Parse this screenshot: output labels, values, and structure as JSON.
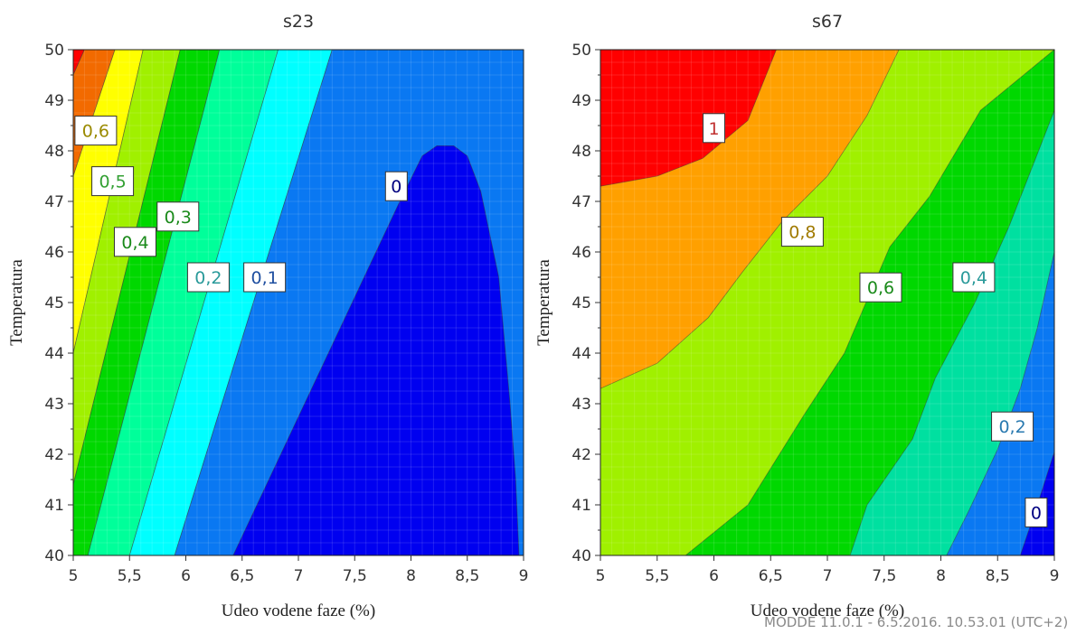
{
  "chart_data": [
    {
      "type": "contour",
      "title": "s23",
      "xlabel": "Udeo vodene faze (%)",
      "ylabel": "Temperatura",
      "xlim": [
        5,
        9
      ],
      "ylim": [
        40,
        50
      ],
      "xticks": [
        "5",
        "5,5",
        "6",
        "6,5",
        "7",
        "7,5",
        "8",
        "8,5",
        "9"
      ],
      "yticks": [
        "40",
        "41",
        "42",
        "43",
        "44",
        "45",
        "46",
        "47",
        "48",
        "49",
        "50"
      ],
      "levels": [
        {
          "value": "0,6",
          "color": "#f26a00",
          "text_color": "#9a8a00",
          "x": 5.2,
          "y": 48.4
        },
        {
          "value": "0,5",
          "color": "#ffff00",
          "text_color": "#33a033",
          "x": 5.35,
          "y": 47.4
        },
        {
          "value": "0,4",
          "color": "#a0f000",
          "text_color": "#1a8a1a",
          "x": 5.55,
          "y": 46.2
        },
        {
          "value": "0,3",
          "color": "#00d800",
          "text_color": "#1a8a1a",
          "x": 5.93,
          "y": 46.7
        },
        {
          "value": "0,2",
          "color": "#00ff9a",
          "text_color": "#2a9a9a",
          "x": 6.2,
          "y": 45.5
        },
        {
          "value": "0,1",
          "color": "#00ffff",
          "text_color": "#1f4fa0",
          "x": 6.7,
          "y": 45.5
        },
        {
          "value": "0",
          "color": "#0a78f2",
          "text_color": "#000080",
          "x": 7.87,
          "y": 47.3
        }
      ],
      "regions": [
        {
          "color": "#ff0000",
          "points": [
            [
              5,
              50
            ],
            [
              5.1,
              50
            ],
            [
              5,
              49.5
            ]
          ]
        },
        {
          "color": "#f26a00",
          "points": [
            [
              5,
              49.5
            ],
            [
              5.1,
              50
            ],
            [
              5.37,
              50
            ],
            [
              5,
              47.5
            ]
          ]
        },
        {
          "color": "#ffff00",
          "points": [
            [
              5,
              47.5
            ],
            [
              5.37,
              50
            ],
            [
              5.62,
              50
            ],
            [
              5,
              44
            ]
          ]
        },
        {
          "color": "#a0f000",
          "points": [
            [
              5,
              44
            ],
            [
              5.62,
              50
            ],
            [
              5.95,
              50
            ],
            [
              5,
              41.4
            ]
          ]
        },
        {
          "color": "#00d800",
          "points": [
            [
              5,
              41.4
            ],
            [
              5.95,
              50
            ],
            [
              6.3,
              50
            ],
            [
              5.13,
              40
            ],
            [
              5,
              40
            ]
          ]
        },
        {
          "color": "#00ff9a",
          "points": [
            [
              5.13,
              40
            ],
            [
              6.3,
              50
            ],
            [
              6.82,
              50
            ],
            [
              5.5,
              40
            ]
          ]
        },
        {
          "color": "#00ffff",
          "points": [
            [
              5.5,
              40
            ],
            [
              6.82,
              50
            ],
            [
              7.3,
              50
            ],
            [
              5.9,
              40
            ]
          ]
        },
        {
          "color": "#0a78f2",
          "points": [
            [
              5.9,
              40
            ],
            [
              7.3,
              50
            ],
            [
              9,
              50
            ],
            [
              9,
              40
            ]
          ]
        },
        {
          "color": "#0000f0",
          "points": [
            [
              6.42,
              40
            ],
            [
              7.9,
              47.0
            ],
            [
              8.1,
              47.9
            ],
            [
              8.23,
              48.1
            ],
            [
              8.38,
              48.1
            ],
            [
              8.5,
              47.9
            ],
            [
              8.62,
              47.2
            ],
            [
              8.78,
              45.5
            ],
            [
              8.88,
              43.0
            ],
            [
              8.93,
              41.5
            ],
            [
              8.96,
              40
            ]
          ]
        }
      ]
    },
    {
      "type": "contour",
      "title": "s67",
      "xlabel": "Udeo vodene faze (%)",
      "ylabel": "Temperatura",
      "xlim": [
        5,
        9
      ],
      "ylim": [
        40,
        50
      ],
      "xticks": [
        "5",
        "5,5",
        "6",
        "6,5",
        "7",
        "7,5",
        "8",
        "8,5",
        "9"
      ],
      "yticks": [
        "40",
        "41",
        "42",
        "43",
        "44",
        "45",
        "46",
        "47",
        "48",
        "49",
        "50"
      ],
      "levels": [
        {
          "value": "1",
          "color": "#ff0000",
          "text_color": "#c03030",
          "x": 6.0,
          "y": 48.45
        },
        {
          "value": "0,8",
          "color": "#ffa000",
          "text_color": "#a07a00",
          "x": 6.78,
          "y": 46.4
        },
        {
          "value": "0,6",
          "color": "#a0f000",
          "text_color": "#1a8a1a",
          "x": 7.47,
          "y": 45.3
        },
        {
          "value": "0,4",
          "color": "#00d800",
          "text_color": "#2a9a9a",
          "x": 8.29,
          "y": 45.5
        },
        {
          "value": "0,2",
          "color": "#00e0a0",
          "text_color": "#2a7ab0",
          "x": 8.63,
          "y": 42.55
        },
        {
          "value": "0",
          "color": "#0a78f2",
          "text_color": "#000080",
          "x": 8.84,
          "y": 40.85
        }
      ],
      "regions": [
        {
          "color": "#a0f000",
          "points": [
            [
              5,
              40
            ],
            [
              9,
              40
            ],
            [
              9,
              50
            ],
            [
              5,
              50
            ]
          ]
        },
        {
          "color": "#ffa000",
          "points": [
            [
              5,
              50
            ],
            [
              7.63,
              50
            ],
            [
              7.35,
              48.7
            ],
            [
              7.0,
              47.5
            ],
            [
              6.6,
              46.6
            ],
            [
              6.25,
              45.6
            ],
            [
              5.95,
              44.7
            ],
            [
              5.5,
              43.8
            ],
            [
              5,
              43.3
            ]
          ]
        },
        {
          "color": "#ff0000",
          "points": [
            [
              5,
              50
            ],
            [
              6.55,
              50
            ],
            [
              6.3,
              48.6
            ],
            [
              5.9,
              47.85
            ],
            [
              5.5,
              47.5
            ],
            [
              5,
              47.3
            ]
          ]
        },
        {
          "color": "#00d800",
          "points": [
            [
              9,
              50
            ],
            [
              8.35,
              48.8
            ],
            [
              7.9,
              47.1
            ],
            [
              7.55,
              46.1
            ],
            [
              7.15,
              44.0
            ],
            [
              6.8,
              42.8
            ],
            [
              6.3,
              41.0
            ],
            [
              5.75,
              40
            ],
            [
              9,
              40
            ]
          ]
        },
        {
          "color": "#00e0a0",
          "points": [
            [
              9,
              48.8
            ],
            [
              8.6,
              46.5
            ],
            [
              8.3,
              45.0
            ],
            [
              7.95,
              43.5
            ],
            [
              7.75,
              42.3
            ],
            [
              7.35,
              41.0
            ],
            [
              7.2,
              40
            ],
            [
              9,
              40
            ]
          ]
        },
        {
          "color": "#0a78f2",
          "points": [
            [
              9,
              46.0
            ],
            [
              8.85,
              44.5
            ],
            [
              8.7,
              43.3
            ],
            [
              8.5,
              42.1
            ],
            [
              8.25,
              40.9
            ],
            [
              8.05,
              40
            ],
            [
              9,
              40
            ]
          ]
        },
        {
          "color": "#0000f0",
          "points": [
            [
              9,
              42.05
            ],
            [
              8.85,
              41.0
            ],
            [
              8.7,
              40
            ],
            [
              9,
              40
            ]
          ]
        }
      ]
    }
  ],
  "footer": "MODDE 11.0.1 - 6.5.2016. 10.53.01 (UTC+2)"
}
